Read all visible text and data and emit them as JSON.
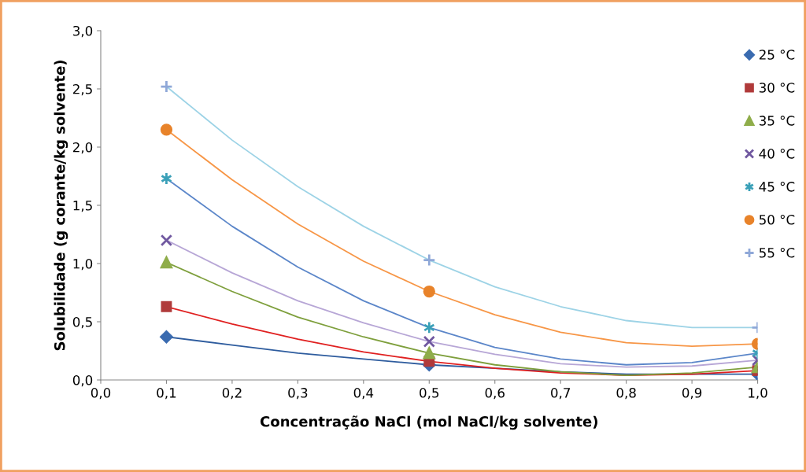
{
  "chart_data": {
    "type": "scatter",
    "xlabel": "Concentração NaCl (mol NaCl/kg solvente)",
    "ylabel": "Solubilidade (g corante/kg solvente)",
    "x": [
      0.1,
      0.5,
      1.0
    ],
    "xlim": [
      0,
      1.0
    ],
    "xticks": [
      {
        "value": 0,
        "label": "0,0"
      },
      {
        "value": 0.1,
        "label": "0,1"
      },
      {
        "value": 0.2,
        "label": "0,2"
      },
      {
        "value": 0.3,
        "label": "0,3"
      },
      {
        "value": 0.4,
        "label": "0,4"
      },
      {
        "value": 0.5,
        "label": "0,5"
      },
      {
        "value": 0.6,
        "label": "0,6"
      },
      {
        "value": 0.7,
        "label": "0,7"
      },
      {
        "value": 0.8,
        "label": "0,8"
      },
      {
        "value": 0.9,
        "label": "0,9"
      },
      {
        "value": 1.0,
        "label": "1,0"
      }
    ],
    "ylim": [
      0,
      3.0
    ],
    "yticks": [
      {
        "value": 0,
        "label": "0,0"
      },
      {
        "value": 0.5,
        "label": "0,5"
      },
      {
        "value": 1.0,
        "label": "1,0"
      },
      {
        "value": 1.5,
        "label": "1,5"
      },
      {
        "value": 2.0,
        "label": "2,0"
      },
      {
        "value": 2.5,
        "label": "2,5"
      },
      {
        "value": 3.0,
        "label": "3,0"
      }
    ],
    "grid": false,
    "legend": "right",
    "series": [
      {
        "type": "line",
        "color": "#2e5c9e",
        "x": [
          0.1,
          0.2,
          0.3,
          0.4,
          0.5,
          0.6,
          0.7,
          0.8,
          0.9,
          1.0
        ],
        "values": [
          0.37,
          0.3,
          0.23,
          0.18,
          0.13,
          0.1,
          0.07,
          0.05,
          0.05,
          0.05
        ]
      },
      {
        "type": "line",
        "color": "#e02020",
        "x": [
          0.1,
          0.2,
          0.3,
          0.4,
          0.5,
          0.6,
          0.7,
          0.8,
          0.9,
          1.0
        ],
        "values": [
          0.63,
          0.48,
          0.35,
          0.24,
          0.16,
          0.1,
          0.06,
          0.04,
          0.05,
          0.08
        ]
      },
      {
        "type": "line",
        "color": "#7e9f3c",
        "x": [
          0.1,
          0.2,
          0.3,
          0.4,
          0.5,
          0.6,
          0.7,
          0.8,
          0.9,
          1.0
        ],
        "values": [
          1.01,
          0.76,
          0.54,
          0.37,
          0.23,
          0.13,
          0.07,
          0.04,
          0.06,
          0.11
        ]
      },
      {
        "type": "line",
        "color": "#b7a6d6",
        "x": [
          0.1,
          0.2,
          0.3,
          0.4,
          0.5,
          0.6,
          0.7,
          0.8,
          0.9,
          1.0
        ],
        "values": [
          1.2,
          0.92,
          0.68,
          0.49,
          0.33,
          0.22,
          0.14,
          0.11,
          0.12,
          0.17
        ]
      },
      {
        "type": "line",
        "color": "#5b86c9",
        "x": [
          0.1,
          0.2,
          0.3,
          0.4,
          0.5,
          0.6,
          0.7,
          0.8,
          0.9,
          1.0
        ],
        "values": [
          1.73,
          1.32,
          0.97,
          0.68,
          0.45,
          0.28,
          0.18,
          0.13,
          0.15,
          0.23
        ]
      },
      {
        "type": "line",
        "color": "#f79646",
        "x": [
          0.1,
          0.2,
          0.3,
          0.4,
          0.5,
          0.6,
          0.7,
          0.8,
          0.9,
          1.0
        ],
        "values": [
          2.15,
          1.72,
          1.34,
          1.02,
          0.76,
          0.56,
          0.41,
          0.32,
          0.29,
          0.31
        ]
      },
      {
        "type": "line",
        "color": "#9dd3e6",
        "x": [
          0.1,
          0.2,
          0.3,
          0.4,
          0.5,
          0.6,
          0.7,
          0.8,
          0.9,
          1.0
        ],
        "values": [
          2.52,
          2.06,
          1.66,
          1.32,
          1.03,
          0.8,
          0.63,
          0.51,
          0.45,
          0.45
        ]
      },
      {
        "name": "25 °C",
        "color": "#3a6bb0",
        "marker": "diamond",
        "values": [
          0.37,
          0.13,
          0.05
        ]
      },
      {
        "name": "30 °C",
        "color": "#b03a3a",
        "marker": "square",
        "values": [
          0.63,
          0.16,
          0.08
        ]
      },
      {
        "name": "35 °C",
        "color": "#8fad4a",
        "marker": "triangle",
        "values": [
          1.01,
          0.23,
          0.11
        ]
      },
      {
        "name": "40 °C",
        "color": "#7058a0",
        "marker": "cross",
        "values": [
          1.2,
          0.33,
          0.17
        ]
      },
      {
        "name": "45 °C",
        "color": "#3aa0b8",
        "values": [
          1.73,
          0.45,
          0.23
        ]
      },
      {
        "name": "50 °C",
        "color": "#e8832a",
        "marker": "circle",
        "values": [
          2.15,
          0.76,
          0.31
        ]
      },
      {
        "name": "55 °C",
        "color": "#8fa8d8",
        "marker": "plus",
        "values": [
          2.52,
          1.03,
          0.45
        ]
      }
    ]
  }
}
